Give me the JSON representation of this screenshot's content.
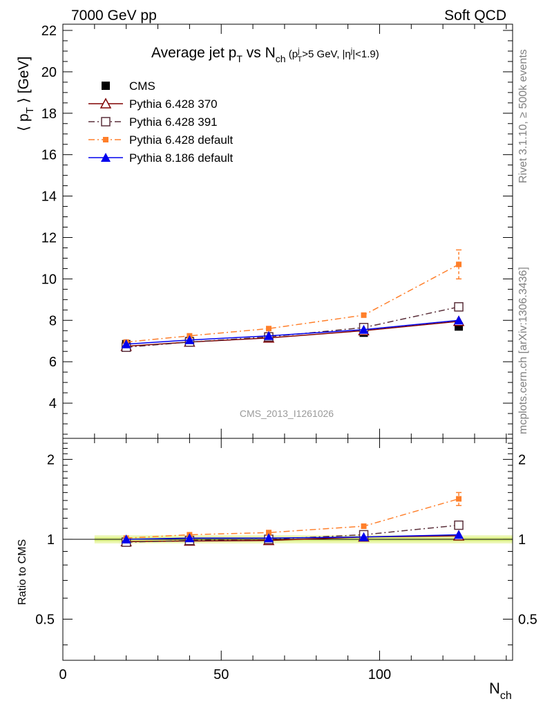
{
  "header": {
    "left": "7000 GeV pp",
    "right": "Soft QCD"
  },
  "side_text": {
    "rivet": "Rivet 3.1.10, ≥ 500k events",
    "mcplots": "mcplots.cern.ch [arXiv:1306.3436]"
  },
  "watermark": "CMS_2013_I1261026",
  "chart_data": {
    "type": "line",
    "title": "Average jet pT vs Nch (pTj>5 GeV, |ηj|<1.9)",
    "xlabel": "Nch",
    "ylabel": "⟨ pT ⟩ [GeV]",
    "xlim": [
      0,
      142
    ],
    "x_ticks": [
      0,
      50,
      100
    ],
    "main_panel": {
      "ylim": [
        2.3,
        22.3
      ],
      "y_ticks": [
        4,
        6,
        8,
        10,
        12,
        14,
        16,
        18,
        20,
        22
      ],
      "series": [
        {
          "name": "CMS",
          "color": "#000000",
          "marker": "square-filled",
          "line": "none",
          "x": [
            20,
            40,
            65,
            95,
            125
          ],
          "y": [
            6.85,
            7.0,
            7.2,
            7.4,
            7.7
          ]
        },
        {
          "name": "Pythia 6.428 370",
          "color": "#800000",
          "marker": "triangle-open",
          "line": "solid",
          "x": [
            20,
            40,
            65,
            95,
            125
          ],
          "y": [
            6.75,
            6.95,
            7.15,
            7.5,
            7.95
          ]
        },
        {
          "name": "Pythia 6.428 391",
          "color": "#5a2f3a",
          "marker": "square-open",
          "line": "dashdot",
          "x": [
            20,
            40,
            65,
            95,
            125
          ],
          "y": [
            6.7,
            6.95,
            7.2,
            7.65,
            8.65
          ]
        },
        {
          "name": "Pythia 6.428 default",
          "color": "#ff7f2a",
          "marker": "square-small",
          "line": "dashdot",
          "x": [
            20,
            40,
            65,
            95,
            125
          ],
          "y": [
            6.95,
            7.25,
            7.6,
            8.25,
            10.7
          ],
          "yerr": [
            0,
            0,
            0,
            0,
            0.7
          ]
        },
        {
          "name": "Pythia 8.186 default",
          "color": "#0000ee",
          "marker": "triangle-filled",
          "line": "solid",
          "x": [
            20,
            40,
            65,
            95,
            125
          ],
          "y": [
            6.85,
            7.05,
            7.25,
            7.55,
            8.0
          ]
        }
      ]
    },
    "ratio_panel": {
      "ylabel": "Ratio to CMS",
      "ylim_log": [
        0.35,
        2.4
      ],
      "y_tick_labels": [
        "0.5",
        "1",
        "2"
      ],
      "series": [
        {
          "name": "CMS",
          "y": [
            1.0,
            1.0,
            1.0,
            1.0,
            1.0
          ]
        },
        {
          "name": "Pythia 6.428 370",
          "y": [
            0.98,
            0.985,
            0.99,
            1.02,
            1.03
          ]
        },
        {
          "name": "Pythia 6.428 391",
          "y": [
            0.975,
            0.99,
            1.0,
            1.04,
            1.13
          ]
        },
        {
          "name": "Pythia 6.428 default",
          "y": [
            1.01,
            1.04,
            1.06,
            1.12,
            1.42
          ],
          "yerr": [
            0,
            0,
            0,
            0,
            0.08
          ]
        },
        {
          "name": "Pythia 8.186 default",
          "y": [
            1.0,
            1.01,
            1.01,
            1.02,
            1.04
          ]
        }
      ]
    }
  }
}
